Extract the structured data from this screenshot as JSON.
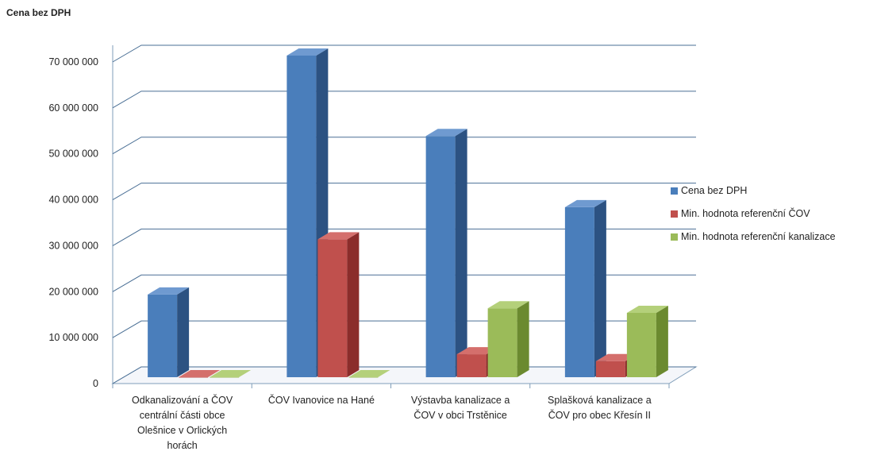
{
  "chart_data": {
    "type": "bar",
    "title": "Cena bez DPH",
    "xlabel": "",
    "ylabel": "",
    "ylim": [
      0,
      70000000
    ],
    "yticks": [
      0,
      10000000,
      20000000,
      30000000,
      40000000,
      50000000,
      60000000,
      70000000
    ],
    "ytick_labels": [
      "0",
      "10 000 000",
      "20 000 000",
      "30 000 000",
      "40 000 000",
      "50 000 000",
      "60 000 000",
      "70 000 000"
    ],
    "grid": true,
    "legend_position": "right",
    "categories": [
      [
        "Odkanalizování a ČOV",
        "centrální části obce",
        "Olešnice v Orlických",
        "horách"
      ],
      [
        "ČOV Ivanovice na Hané"
      ],
      [
        "Výstavba kanalizace a",
        "ČOV v obci Trstěnice"
      ],
      [
        "Splašková kanalizace a",
        "ČOV pro obec Křesín II"
      ]
    ],
    "series": [
      {
        "name": "Cena bez DPH",
        "values": [
          18000000,
          70000000,
          52500000,
          37000000
        ],
        "color": "#4a7ebb",
        "side": "#2c5282",
        "top": "#6f9ad0"
      },
      {
        "name": "Min. hodnota  referenční ČOV",
        "values": [
          0,
          30000000,
          5000000,
          3500000
        ],
        "color": "#c0504d",
        "side": "#8b2d2b",
        "top": "#d46f6c"
      },
      {
        "name": "Min. hodnota  referenční kanalizace",
        "values": [
          0,
          0,
          15000000,
          14000000
        ],
        "color": "#9bbb59",
        "side": "#6b8a2f",
        "top": "#b4d07a"
      }
    ]
  }
}
